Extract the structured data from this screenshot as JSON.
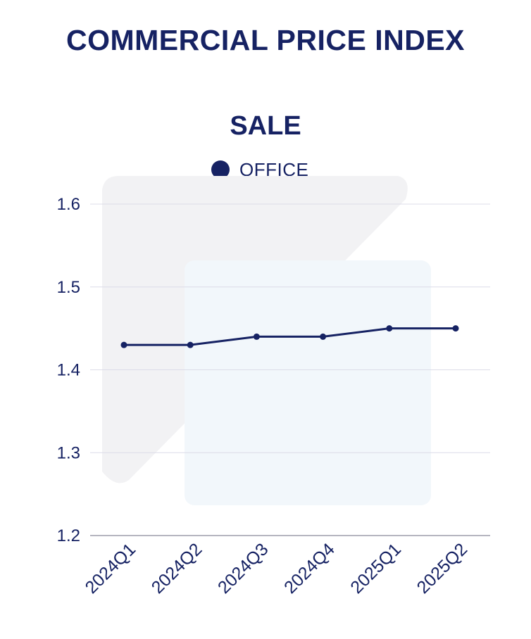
{
  "page": {
    "title": "COMMERCIAL PRICE INDEX"
  },
  "chart_data": {
    "type": "line",
    "title": "SALE",
    "legend": [
      {
        "label": "OFFICE",
        "color": "#162263"
      }
    ],
    "categories": [
      "2024Q1",
      "2024Q2",
      "2024Q3",
      "2024Q4",
      "2025Q1",
      "2025Q2"
    ],
    "series": [
      {
        "name": "OFFICE",
        "values": [
          1.43,
          1.43,
          1.44,
          1.44,
          1.45,
          1.45
        ]
      }
    ],
    "yticks": [
      "1.6",
      "1.5",
      "1.4",
      "1.3",
      "1.2"
    ],
    "ylim": [
      1.2,
      1.6
    ],
    "xlabel": "",
    "ylabel": "",
    "grid": true,
    "colors": {
      "primary": "#162263",
      "grid": "#dcdce8",
      "watermark": "#f2f2f4",
      "watermark_accent": "#f2f7fb"
    }
  }
}
